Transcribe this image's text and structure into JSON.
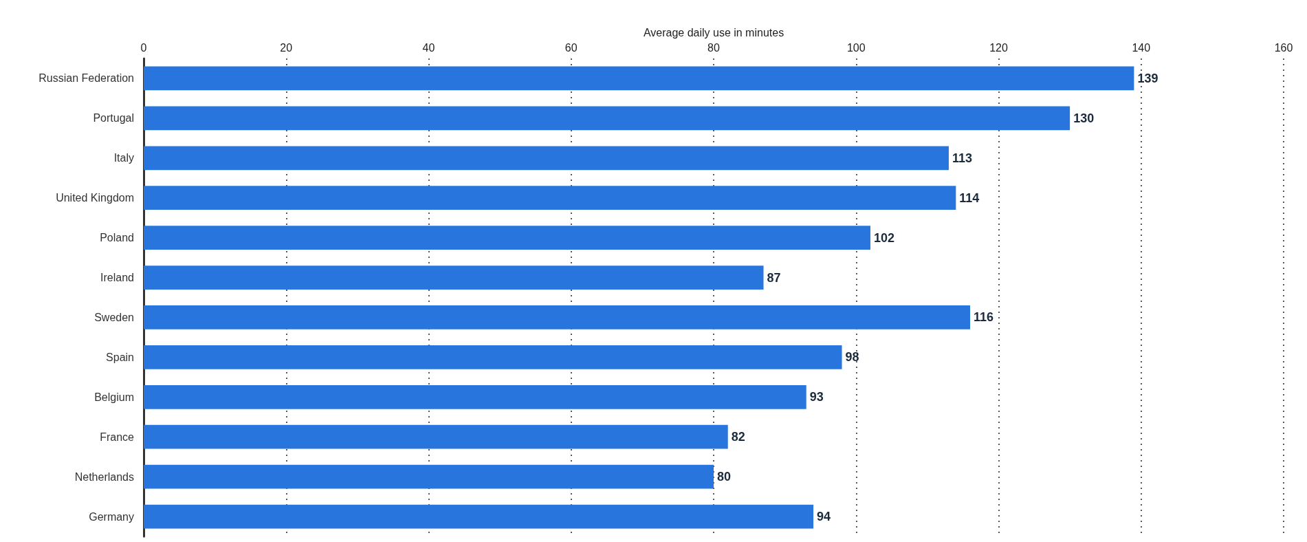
{
  "chart_data": {
    "type": "bar",
    "orientation": "horizontal",
    "xlabel": "Average daily use in minutes",
    "categories": [
      "Russian Federation",
      "Portugal",
      "Italy",
      "United Kingdom",
      "Poland",
      "Ireland",
      "Sweden",
      "Spain",
      "Belgium",
      "France",
      "Netherlands",
      "Germany"
    ],
    "values": [
      139,
      130,
      113,
      114,
      102,
      87,
      116,
      98,
      93,
      82,
      80,
      94
    ],
    "color": "#2876dd",
    "xlim": [
      0,
      160
    ],
    "xticks": [
      0,
      20,
      40,
      60,
      80,
      100,
      120,
      140,
      160
    ],
    "grid": "x",
    "data_labels": true
  }
}
